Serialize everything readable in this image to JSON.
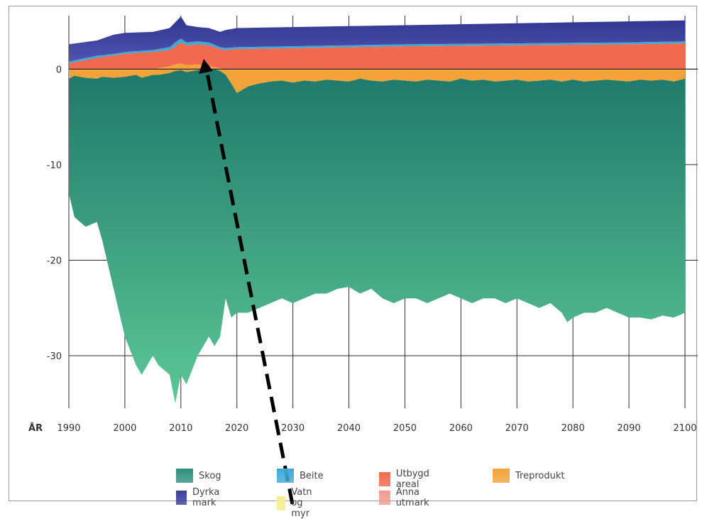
{
  "chart_data": {
    "type": "area",
    "xlabel": "ÅR",
    "ylabel": "",
    "xlim": [
      1990,
      2100
    ],
    "ylim": [
      -35.5,
      5.6
    ],
    "x_ticks": [
      1990,
      2000,
      2010,
      2020,
      2030,
      2040,
      2050,
      2060,
      2070,
      2080,
      2090,
      2100
    ],
    "y_ticks": [
      0,
      -10,
      -20,
      -30
    ],
    "grid": true,
    "legend_position": "bottom",
    "series": [
      {
        "name": "Skog",
        "color": "#2e8f7c",
        "x": [
          1990,
          1991,
          1993,
          1995,
          1996,
          1998,
          2000,
          2002,
          2003,
          2005,
          2006,
          2008,
          2009,
          2010,
          2011,
          2013,
          2015,
          2016,
          2017,
          2018,
          2019,
          2020,
          2022,
          2024,
          2026,
          2028,
          2030,
          2032,
          2034,
          2036,
          2038,
          2040,
          2042,
          2044,
          2046,
          2048,
          2050,
          2052,
          2054,
          2056,
          2058,
          2060,
          2062,
          2064,
          2066,
          2068,
          2070,
          2072,
          2074,
          2076,
          2078,
          2079,
          2080,
          2082,
          2084,
          2086,
          2088,
          2090,
          2092,
          2094,
          2096,
          2098,
          2100
        ],
        "low": [
          -13,
          -15.5,
          -16.5,
          -16,
          -18,
          -23,
          -28,
          -31,
          -32,
          -30,
          -31,
          -32,
          -35,
          -32,
          -33,
          -30,
          -28,
          -29,
          -28,
          -24,
          -26,
          -25.5,
          -25.5,
          -25,
          -24.5,
          -24,
          -24.5,
          -24,
          -23.5,
          -23.5,
          -23,
          -22.8,
          -23.5,
          -23,
          -24,
          -24.5,
          -24,
          -24,
          -24.5,
          -24,
          -23.5,
          -24,
          -24.5,
          -24,
          -24,
          -24.5,
          -24,
          -24.5,
          -25,
          -24.5,
          -25.5,
          -26.5,
          -26,
          -25.5,
          -25.5,
          -25,
          -25.5,
          -26,
          -26,
          -26.2,
          -25.8,
          -26,
          -25.5
        ],
        "high": [
          -1,
          -0.7,
          -0.9,
          -1.0,
          -0.8,
          -0.9,
          -0.8,
          -0.6,
          -0.9,
          -0.6,
          -0.6,
          -0.4,
          -0.2,
          -0.1,
          -0.3,
          -0.1,
          0,
          0,
          -0.2,
          -0.6,
          -1.5,
          -2.5,
          -1.8,
          -1.5,
          -1.3,
          -1.2,
          -1.4,
          -1.2,
          -1.3,
          -1.1,
          -1.2,
          -1.3,
          -1.0,
          -1.2,
          -1.3,
          -1.1,
          -1.2,
          -1.3,
          -1.1,
          -1.2,
          -1.3,
          -1.0,
          -1.2,
          -1.1,
          -1.3,
          -1.2,
          -1.1,
          -1.3,
          -1.2,
          -1.1,
          -1.3,
          -1.2,
          -1.1,
          -1.3,
          -1.2,
          -1.1,
          -1.2,
          -1.3,
          -1.1,
          -1.2,
          -1.1,
          -1.3,
          -1.0
        ]
      },
      {
        "name": "Treprodukt",
        "color": "#f4a23a",
        "x": [
          1990,
          1991,
          1993,
          1995,
          1996,
          1998,
          2000,
          2002,
          2003,
          2005,
          2006,
          2008,
          2009,
          2010,
          2011,
          2013,
          2015,
          2016,
          2017,
          2018,
          2019,
          2020,
          2022,
          2024,
          2026,
          2028,
          2030,
          2032,
          2034,
          2036,
          2038,
          2040,
          2042,
          2044,
          2046,
          2048,
          2050,
          2052,
          2054,
          2056,
          2058,
          2060,
          2062,
          2064,
          2066,
          2068,
          2070,
          2072,
          2074,
          2076,
          2078,
          2079,
          2080,
          2082,
          2084,
          2086,
          2088,
          2090,
          2092,
          2094,
          2096,
          2098,
          2100
        ],
        "low": [
          -1,
          -0.7,
          -0.9,
          -1.0,
          -0.8,
          -0.9,
          -0.8,
          -0.6,
          -0.9,
          -0.6,
          -0.6,
          -0.4,
          -0.2,
          -0.1,
          -0.3,
          -0.1,
          0,
          0,
          -0.2,
          -0.6,
          -1.5,
          -2.5,
          -1.8,
          -1.5,
          -1.3,
          -1.2,
          -1.4,
          -1.2,
          -1.3,
          -1.1,
          -1.2,
          -1.3,
          -1.0,
          -1.2,
          -1.3,
          -1.1,
          -1.2,
          -1.3,
          -1.1,
          -1.2,
          -1.3,
          -1.0,
          -1.2,
          -1.1,
          -1.3,
          -1.2,
          -1.1,
          -1.3,
          -1.2,
          -1.1,
          -1.3,
          -1.2,
          -1.1,
          -1.3,
          -1.2,
          -1.1,
          -1.2,
          -1.3,
          -1.1,
          -1.2,
          -1.1,
          -1.3,
          -1.0
        ],
        "high": [
          0,
          0,
          0,
          0,
          0,
          0,
          0,
          0,
          0,
          0,
          0.1,
          0.3,
          0.5,
          0.6,
          0.4,
          0.5,
          0.3,
          0.2,
          0.1,
          0,
          0,
          0,
          0,
          0,
          0,
          0,
          0,
          0,
          0,
          0,
          0,
          0,
          0,
          0,
          0,
          0,
          0,
          0,
          0,
          0,
          0,
          0,
          0,
          0,
          0,
          0,
          0,
          0,
          0,
          0,
          0,
          0,
          0,
          0,
          0,
          0,
          0,
          0,
          0,
          0,
          0,
          0,
          0
        ]
      },
      {
        "name": "Utbygd areal",
        "color": "#ef6a4f",
        "x": [
          1990,
          1995,
          2000,
          2005,
          2008,
          2009,
          2010,
          2011,
          2013,
          2015,
          2017,
          2018,
          2020,
          2030,
          2040,
          2050,
          2060,
          2070,
          2080,
          2090,
          2100
        ],
        "low": [
          0,
          0,
          0,
          0,
          0.3,
          0.5,
          0.6,
          0.4,
          0.5,
          0.3,
          0.1,
          0,
          0,
          0,
          0,
          0,
          0,
          0,
          0,
          0,
          0
        ],
        "high": [
          0.6,
          1.2,
          1.6,
          1.8,
          2.0,
          2.4,
          2.8,
          2.5,
          2.6,
          2.5,
          2.1,
          2.0,
          2.1,
          2.2,
          2.3,
          2.4,
          2.45,
          2.5,
          2.55,
          2.6,
          2.7
        ]
      },
      {
        "name": "Anna utmark",
        "color": "#f29a92",
        "x": [
          1990,
          2100
        ],
        "low": [
          0,
          0
        ],
        "high": [
          0,
          0
        ]
      },
      {
        "name": "Beite",
        "color": "#3fa8d8",
        "x": [
          1990,
          1995,
          2000,
          2005,
          2008,
          2009,
          2010,
          2011,
          2013,
          2015,
          2017,
          2018,
          2020,
          2030,
          2040,
          2050,
          2060,
          2070,
          2080,
          2090,
          2100
        ],
        "low": [
          0.6,
          1.2,
          1.6,
          1.8,
          2.0,
          2.4,
          2.8,
          2.5,
          2.6,
          2.5,
          2.1,
          2.0,
          2.1,
          2.2,
          2.3,
          2.4,
          2.45,
          2.5,
          2.55,
          2.6,
          2.7
        ],
        "high": [
          0.8,
          1.4,
          1.8,
          2.0,
          2.3,
          2.8,
          3.2,
          2.8,
          2.9,
          2.8,
          2.3,
          2.2,
          2.3,
          2.4,
          2.5,
          2.6,
          2.65,
          2.7,
          2.75,
          2.8,
          2.9
        ]
      },
      {
        "name": "Vatn og myr",
        "color": "#f3ee8c",
        "x": [
          1990,
          2100
        ],
        "low": [
          0,
          0
        ],
        "high": [
          0,
          0
        ]
      },
      {
        "name": "Dyrka mark",
        "color": "#3b3f9b",
        "x": [
          1990,
          1995,
          1998,
          2000,
          2005,
          2008,
          2009,
          2010,
          2011,
          2013,
          2015,
          2017,
          2018,
          2020,
          2030,
          2040,
          2050,
          2060,
          2070,
          2080,
          2090,
          2100
        ],
        "low": [
          0.8,
          1.4,
          1.6,
          1.8,
          2.0,
          2.3,
          2.8,
          3.2,
          2.8,
          2.9,
          2.8,
          2.3,
          2.2,
          2.3,
          2.4,
          2.5,
          2.6,
          2.65,
          2.7,
          2.75,
          2.8,
          2.9
        ],
        "high": [
          2.6,
          3.0,
          3.6,
          3.8,
          3.9,
          4.3,
          4.9,
          5.5,
          4.6,
          4.4,
          4.3,
          3.9,
          4.1,
          4.3,
          4.4,
          4.5,
          4.6,
          4.7,
          4.8,
          4.9,
          5.0,
          5.1
        ]
      }
    ],
    "legend": [
      {
        "label": "Skog",
        "color": "#2e8f7c"
      },
      {
        "label": "Beite",
        "color": "#3fa8d8"
      },
      {
        "label": "Utbygd areal",
        "color": "#ef6a4f"
      },
      {
        "label": "Treprodukt",
        "color": "#f4a23a"
      },
      {
        "label": "Dyrka mark",
        "color": "#3b3f9b"
      },
      {
        "label": "Vatn og myr",
        "color": "#f3ee8c"
      },
      {
        "label": "Anna utmark",
        "color": "#f29a92"
      }
    ]
  }
}
